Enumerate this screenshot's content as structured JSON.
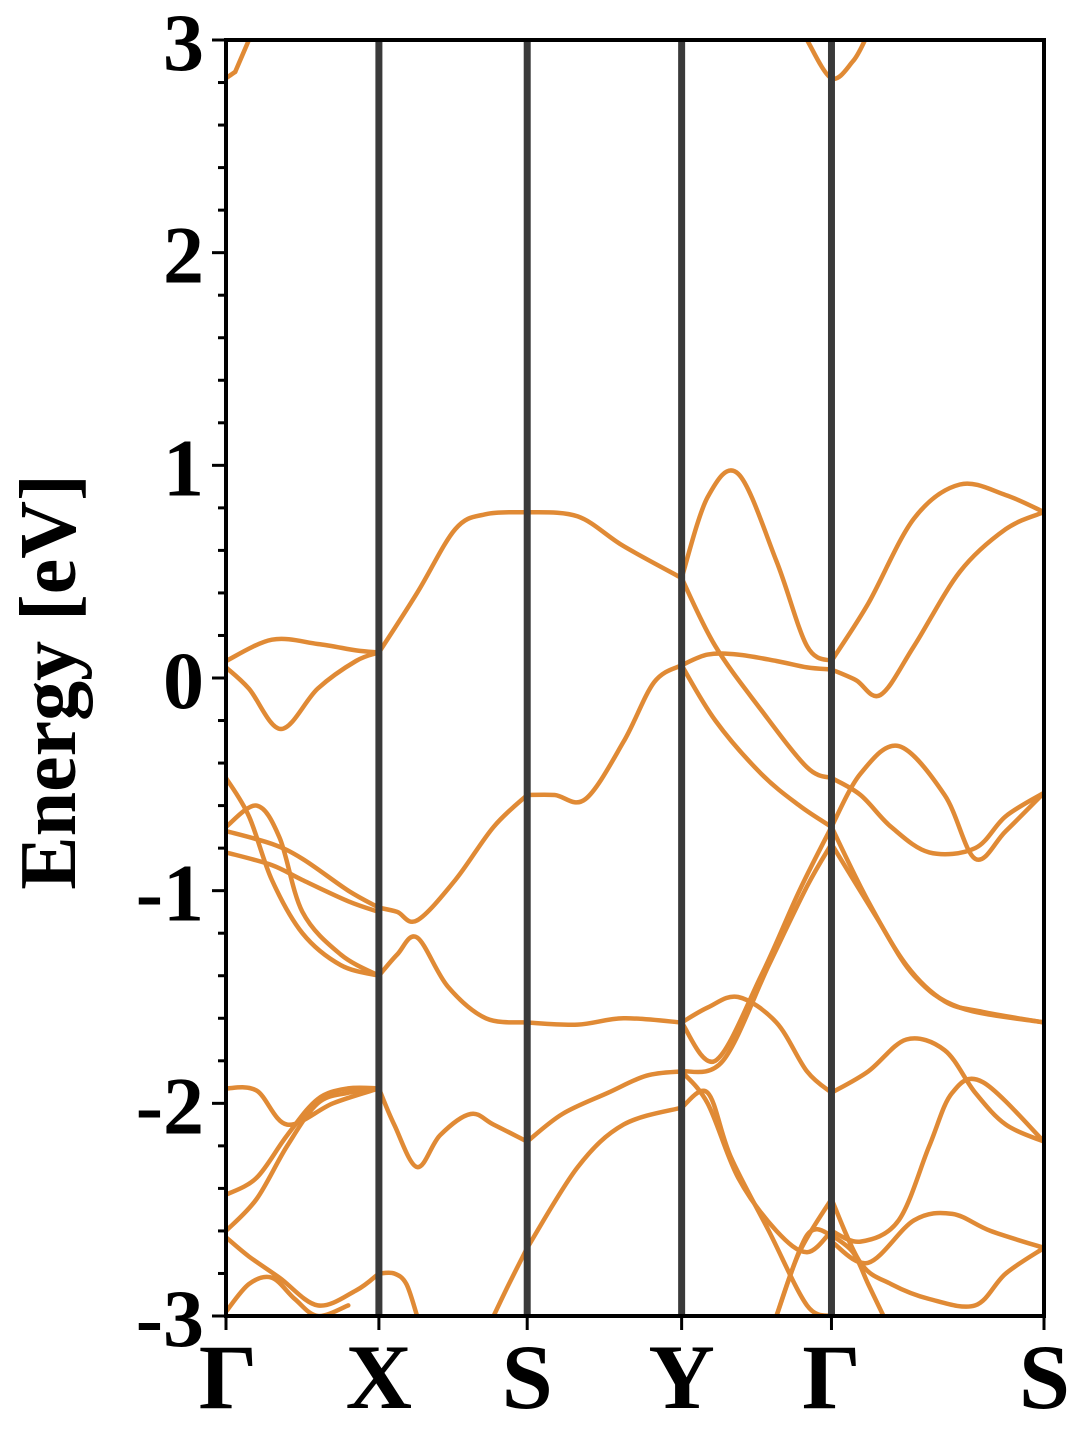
{
  "chart_data": {
    "type": "line",
    "title": "",
    "xlabel": "",
    "ylabel": "Energy [eV]",
    "ylim": [
      -3,
      3
    ],
    "yticks": [
      {
        "value": 3,
        "label": "3"
      },
      {
        "value": 2,
        "label": "2"
      },
      {
        "value": 1,
        "label": "1"
      },
      {
        "value": 0,
        "label": "0"
      },
      {
        "value": -1,
        "label": "-1"
      },
      {
        "value": -2,
        "label": "-2"
      },
      {
        "value": -3,
        "label": "-3"
      }
    ],
    "xticks": [
      {
        "value": 0.0,
        "label": "Γ"
      },
      {
        "value": 1.0,
        "label": "X"
      },
      {
        "value": 1.97,
        "label": "S"
      },
      {
        "value": 2.98,
        "label": "Y"
      },
      {
        "value": 3.96,
        "label": "Γ"
      },
      {
        "value": 5.35,
        "label": "S"
      }
    ],
    "grid": false,
    "line_color": "#e08a35",
    "divider_color": "#3a3a3a",
    "series": [
      {
        "x": [
          0,
          0.3,
          0.6,
          0.85,
          1.0
        ],
        "values": [
          0.08,
          0.18,
          0.16,
          0.13,
          0.12
        ]
      },
      {
        "x": [
          0,
          0.15,
          0.36,
          0.6,
          0.85,
          1.0
        ],
        "values": [
          0.05,
          -0.05,
          -0.24,
          -0.05,
          0.08,
          0.12
        ]
      },
      {
        "x": [
          1.0,
          1.25,
          1.5,
          1.7,
          1.97
        ],
        "values": [
          0.12,
          0.4,
          0.7,
          0.77,
          0.78
        ]
      },
      {
        "x": [
          1.97,
          2.3,
          2.6,
          2.98
        ],
        "values": [
          0.78,
          0.76,
          0.62,
          0.47
        ]
      },
      {
        "x": [
          2.98,
          3.15,
          3.35,
          3.6,
          3.8,
          3.96
        ],
        "values": [
          0.47,
          0.85,
          0.96,
          0.55,
          0.15,
          0.08
        ]
      },
      {
        "x": [
          3.96,
          4.2,
          4.5,
          4.8,
          5.1,
          5.35
        ],
        "values": [
          0.08,
          0.35,
          0.75,
          0.91,
          0.86,
          0.78
        ]
      },
      {
        "x": [
          2.98,
          3.2,
          3.5,
          3.8,
          3.96
        ],
        "values": [
          0.47,
          0.15,
          -0.15,
          -0.42,
          -0.47
        ]
      },
      {
        "x": [
          3.96,
          4.15,
          4.35,
          4.6,
          4.9,
          5.1,
          5.35
        ],
        "values": [
          -0.47,
          -0.55,
          -0.7,
          -0.82,
          -0.8,
          -0.65,
          -0.54
        ]
      },
      {
        "x": [
          1.97,
          2.15,
          2.35,
          2.6,
          2.8,
          2.98
        ],
        "values": [
          -0.55,
          -0.55,
          -0.57,
          -0.3,
          -0.02,
          0.06
        ]
      },
      {
        "x": [
          2.98,
          3.15,
          3.35,
          3.6,
          3.8,
          3.96
        ],
        "values": [
          0.06,
          0.11,
          0.11,
          0.08,
          0.05,
          0.04
        ]
      },
      {
        "x": [
          3.96,
          4.12,
          4.28,
          4.5,
          4.8,
          5.1,
          5.35
        ],
        "values": [
          0.04,
          -0.01,
          -0.08,
          0.15,
          0.5,
          0.7,
          0.78
        ]
      },
      {
        "x": [
          2.98,
          3.2,
          3.5,
          3.75,
          3.96
        ],
        "values": [
          0.06,
          -0.2,
          -0.45,
          -0.6,
          -0.7
        ]
      },
      {
        "x": [
          3.96,
          4.15,
          4.4,
          4.7,
          4.9,
          5.1,
          5.35
        ],
        "values": [
          -0.7,
          -0.45,
          -0.32,
          -0.55,
          -0.85,
          -0.72,
          -0.54
        ]
      },
      {
        "x": [
          0,
          0.15,
          0.3,
          0.5,
          0.75,
          1.0
        ],
        "values": [
          -0.47,
          -0.65,
          -0.95,
          -1.2,
          -1.35,
          -1.4
        ]
      },
      {
        "x": [
          0,
          0.2,
          0.35,
          0.5,
          0.75,
          1.0
        ],
        "values": [
          -0.7,
          -0.6,
          -0.75,
          -1.1,
          -1.3,
          -1.4
        ]
      },
      {
        "x": [
          0,
          0.3,
          0.5,
          0.8,
          1.0
        ],
        "values": [
          -0.72,
          -0.78,
          -0.85,
          -1.0,
          -1.08
        ]
      },
      {
        "x": [
          0,
          0.3,
          0.5,
          0.8,
          1.0
        ],
        "values": [
          -0.82,
          -0.88,
          -0.95,
          -1.05,
          -1.1
        ]
      },
      {
        "x": [
          1.0,
          1.12,
          1.25,
          1.5,
          1.75,
          1.97
        ],
        "values": [
          -1.08,
          -1.1,
          -1.14,
          -0.95,
          -0.7,
          -0.55
        ]
      },
      {
        "x": [
          1.0,
          1.12,
          1.25,
          1.45,
          1.7,
          1.97
        ],
        "values": [
          -1.4,
          -1.3,
          -1.22,
          -1.45,
          -1.6,
          -1.62
        ]
      },
      {
        "x": [
          1.97,
          2.3,
          2.6,
          2.98
        ],
        "values": [
          -1.62,
          -1.63,
          -1.6,
          -1.62
        ]
      },
      {
        "x": [
          2.98,
          3.15,
          3.35,
          3.6,
          3.8,
          3.96
        ],
        "values": [
          -1.62,
          -1.55,
          -1.5,
          -1.62,
          -1.85,
          -1.95
        ]
      },
      {
        "x": [
          3.96,
          4.2,
          4.45,
          4.7,
          4.9,
          5.1,
          5.35
        ],
        "values": [
          -1.95,
          -1.85,
          -1.7,
          -1.75,
          -1.95,
          -2.1,
          -2.18
        ]
      },
      {
        "x": [
          2.98,
          3.2,
          3.5,
          3.75,
          3.96
        ],
        "values": [
          -1.62,
          -1.8,
          -1.4,
          -1.0,
          -0.7
        ]
      },
      {
        "x": [
          3.96,
          4.2,
          4.45,
          4.7,
          4.95,
          5.35
        ],
        "values": [
          -0.7,
          -1.05,
          -1.35,
          -1.52,
          -1.57,
          -1.62
        ]
      },
      {
        "x": [
          2.98,
          3.25,
          3.55,
          3.8,
          3.96
        ],
        "values": [
          -1.85,
          -1.8,
          -1.35,
          -0.98,
          -0.78
        ]
      },
      {
        "x": [
          3.96,
          4.25,
          4.5,
          4.8,
          5.35
        ],
        "values": [
          -0.78,
          -1.12,
          -1.4,
          -1.55,
          -1.62
        ]
      },
      {
        "x": [
          0,
          0.2,
          0.4,
          0.7,
          1.0
        ],
        "values": [
          -1.93,
          -1.94,
          -2.1,
          -2.0,
          -1.93
        ]
      },
      {
        "x": [
          1.0,
          1.1,
          1.25,
          1.4,
          1.6,
          1.75,
          1.97
        ],
        "values": [
          -1.93,
          -2.1,
          -2.3,
          -2.15,
          -2.05,
          -2.1,
          -2.18
        ]
      },
      {
        "x": [
          1.97,
          2.2,
          2.5,
          2.75,
          2.98
        ],
        "values": [
          -2.18,
          -2.05,
          -1.95,
          -1.87,
          -1.85
        ]
      },
      {
        "x": [
          2.98,
          3.15,
          3.35,
          3.6,
          3.8,
          3.96
        ],
        "values": [
          -1.85,
          -2.0,
          -2.35,
          -2.6,
          -2.7,
          -2.6
        ]
      },
      {
        "x": [
          3.96,
          4.15,
          4.4,
          4.6,
          4.75,
          4.95,
          5.35
        ],
        "values": [
          -2.6,
          -2.65,
          -2.55,
          -2.2,
          -1.95,
          -1.9,
          -2.18
        ]
      },
      {
        "x": [
          0,
          0.2,
          0.4,
          0.6,
          0.8,
          1.0
        ],
        "values": [
          -2.43,
          -2.35,
          -2.15,
          -1.98,
          -1.93,
          -1.93
        ]
      },
      {
        "x": [
          0,
          0.2,
          0.4,
          0.6,
          0.8,
          1.0
        ],
        "values": [
          -2.6,
          -2.45,
          -2.2,
          -2.0,
          -1.95,
          -1.93
        ]
      },
      {
        "x": [
          2.98,
          3.15,
          3.3,
          3.55,
          3.8,
          3.96
        ],
        "values": [
          -2.02,
          -1.95,
          -2.25,
          -2.6,
          -2.95,
          -3.0
        ]
      },
      {
        "x": [
          1.97,
          2.3,
          2.6,
          2.98
        ],
        "values": [
          -2.68,
          -2.3,
          -2.1,
          -2.02
        ]
      },
      {
        "x": [
          1.75,
          1.85,
          1.97
        ],
        "values": [
          -3.0,
          -2.85,
          -2.68
        ]
      },
      {
        "x": [
          0,
          0.15,
          0.35,
          0.6,
          0.85,
          1.0
        ],
        "values": [
          -2.63,
          -2.72,
          -2.82,
          -2.95,
          -2.88,
          -2.8
        ]
      },
      {
        "x": [
          0,
          0.15,
          0.3,
          0.45,
          0.6,
          0.8
        ],
        "values": [
          -2.98,
          -2.85,
          -2.82,
          -2.92,
          -3.0,
          -2.95
        ]
      },
      {
        "x": [
          1.0,
          1.1,
          1.18,
          1.25
        ],
        "values": [
          -2.8,
          -2.8,
          -2.85,
          -3.0
        ]
      },
      {
        "x": [
          3.6,
          3.75,
          3.96
        ],
        "values": [
          -3.0,
          -2.7,
          -2.45
        ]
      },
      {
        "x": [
          3.96,
          4.15,
          4.35,
          4.6,
          4.9,
          5.1,
          5.35
        ],
        "values": [
          -2.45,
          -2.75,
          -2.85,
          -2.92,
          -2.95,
          -2.8,
          -2.68
        ]
      },
      {
        "x": [
          3.96,
          4.2,
          4.5,
          4.75,
          5.0,
          5.35
        ],
        "values": [
          -2.65,
          -2.75,
          -2.55,
          -2.52,
          -2.6,
          -2.68
        ]
      },
      {
        "x": [
          3.6,
          3.8,
          3.96
        ],
        "values": [
          -3.0,
          -2.62,
          -2.62
        ]
      },
      {
        "x": [
          3.96,
          4.1,
          4.2,
          4.3
        ],
        "values": [
          -2.62,
          -2.7,
          -2.85,
          -3.0
        ]
      },
      {
        "x": [
          0,
          0.06
        ],
        "values": [
          2.82,
          2.85
        ]
      },
      {
        "x": [
          0.06,
          0.15
        ],
        "values": [
          2.85,
          3.0
        ]
      },
      {
        "x": [
          3.8,
          3.96,
          4.1,
          4.18
        ],
        "values": [
          3.0,
          2.82,
          2.9,
          3.0
        ]
      }
    ]
  }
}
